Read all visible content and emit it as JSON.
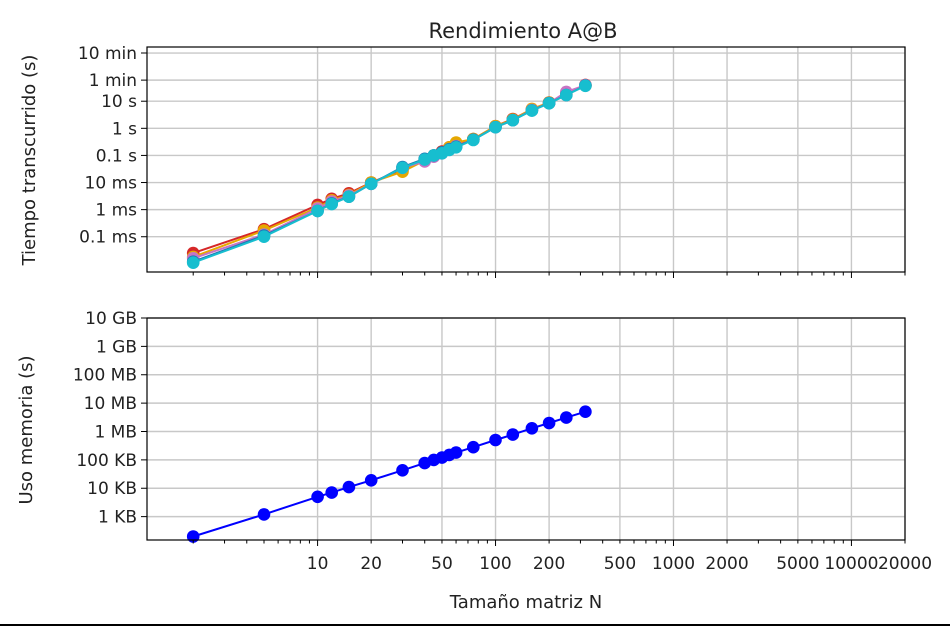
{
  "chart_data": [
    {
      "type": "line",
      "title": "Rendimiento A@B",
      "xlabel": "",
      "ylabel": "Tiempo transcurrido (s)",
      "xscale": "log",
      "yscale": "log",
      "xlim": [
        1.1,
        20000
      ],
      "ylim": [
        5e-06,
        1000
      ],
      "grid": true,
      "legend": "none",
      "xtick_labels": [],
      "ytick_values": [
        0.0001,
        0.001,
        0.01,
        0.1,
        1,
        10,
        60,
        600
      ],
      "ytick_labels": [
        "0.1 ms",
        "1 ms",
        "10 ms",
        "0.1 s",
        "1 s",
        "10 s",
        "1 min",
        "10 min"
      ],
      "x": [
        2,
        5,
        10,
        12,
        15,
        20,
        30,
        40,
        45,
        50,
        55,
        60,
        75,
        100,
        125,
        160,
        200,
        250,
        320
      ],
      "series": [
        {
          "color": "#d62728",
          "values": [
            2.5e-05,
            0.00019,
            0.0015,
            0.0025,
            0.004,
            0.01,
            0.03,
            0.07,
            0.1,
            0.14,
            0.2,
            0.25,
            0.4,
            1.2,
            2.2,
            5,
            9,
            18,
            40
          ]
        },
        {
          "color": "#e6a800",
          "values": [
            1.8e-05,
            0.00017,
            0.0012,
            0.0022,
            0.0035,
            0.01,
            0.025,
            0.065,
            0.095,
            0.13,
            0.2,
            0.3,
            0.4,
            1.2,
            2.1,
            5.2,
            9,
            19,
            38
          ]
        },
        {
          "color": "#c774c4",
          "values": [
            1.6e-05,
            0.00012,
            0.0011,
            0.002,
            0.0033,
            0.009,
            0.035,
            0.06,
            0.09,
            0.12,
            0.17,
            0.22,
            0.38,
            1.1,
            2,
            4.8,
            8.5,
            22,
            39
          ]
        },
        {
          "color": "#1f77b4",
          "values": [
            1.2e-05,
            0.00011,
            0.0009,
            0.0017,
            0.003,
            0.009,
            0.037,
            0.075,
            0.1,
            0.13,
            0.17,
            0.21,
            0.38,
            1.1,
            2,
            4.6,
            8.5,
            17,
            38
          ]
        },
        {
          "color": "#17becf",
          "values": [
            1.1e-05,
            0.0001,
            0.0009,
            0.0016,
            0.003,
            0.009,
            0.035,
            0.07,
            0.1,
            0.12,
            0.16,
            0.2,
            0.37,
            1.1,
            2,
            4.5,
            8.4,
            17,
            37
          ]
        }
      ]
    },
    {
      "type": "line",
      "title": "",
      "xlabel": "Tamaño matriz N",
      "ylabel": "Uso memoria (s)",
      "xscale": "log",
      "yscale": "log",
      "xlim": [
        1.1,
        20000
      ],
      "ylim": [
        150,
        10000000000
      ],
      "grid": true,
      "legend": "none",
      "xtick_values": [
        10,
        20,
        50,
        100,
        200,
        500,
        1000,
        2000,
        5000,
        10000,
        20000
      ],
      "xtick_labels": [
        "10",
        "20",
        "50",
        "100",
        "200",
        "500",
        "1000",
        "2000",
        "5000",
        "10000",
        "20000"
      ],
      "ytick_values": [
        1000,
        10000,
        100000,
        1000000,
        10000000,
        100000000,
        1000000000,
        10000000000
      ],
      "ytick_labels": [
        "1 KB",
        "10 KB",
        "100 KB",
        "1 MB",
        "10 MB",
        "100 MB",
        "1 GB",
        "10 GB"
      ],
      "x": [
        2,
        5,
        10,
        12,
        15,
        20,
        30,
        40,
        45,
        50,
        55,
        60,
        75,
        100,
        125,
        160,
        200,
        250,
        320
      ],
      "series": [
        {
          "color": "#0000ff",
          "values": [
            200,
            1200,
            5000,
            7000,
            11000,
            19000,
            43000,
            77000,
            100000,
            120000,
            150000,
            180000,
            280000,
            500000,
            780000,
            1300000,
            2000000,
            3100000,
            5000000
          ]
        }
      ]
    }
  ]
}
